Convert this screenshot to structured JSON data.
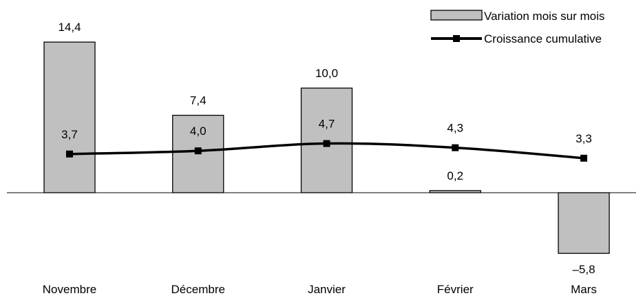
{
  "chart_data": {
    "type": "bar",
    "categories": [
      "Novembre",
      "Décembre",
      "Janvier",
      "Février",
      "Mars"
    ],
    "series": [
      {
        "name": "Variation mois sur mois",
        "kind": "bar",
        "values": [
          14.4,
          7.4,
          10.0,
          0.2,
          -5.8
        ],
        "labels": [
          "14,4",
          "7,4",
          "10,0",
          "0,2",
          "–5,8"
        ],
        "fill": "#c0c0c0",
        "stroke": "#000000"
      },
      {
        "name": "Croissance cumulative",
        "kind": "line",
        "values": [
          3.7,
          4.0,
          4.7,
          4.3,
          3.3
        ],
        "labels": [
          "3,7",
          "4,0",
          "4,7",
          "4,3",
          "3,3"
        ],
        "color": "#000000",
        "marker": "square",
        "smooth": true
      }
    ],
    "title": "",
    "xlabel": "",
    "ylabel": "",
    "ylim": [
      -7,
      16
    ],
    "grid": false,
    "legend_position": "top-right"
  }
}
